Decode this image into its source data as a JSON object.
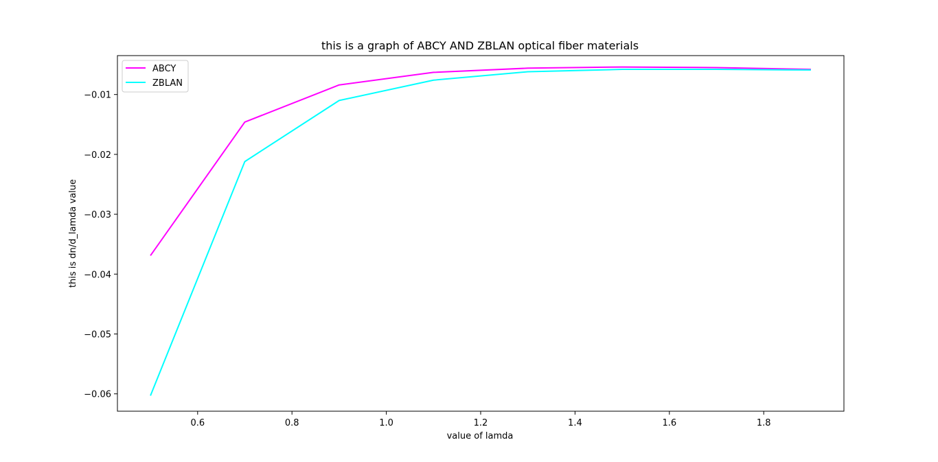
{
  "chart_data": {
    "type": "line",
    "title": "this is a graph of ABCY AND ZBLAN optical fiber materials",
    "xlabel": "value of lamda",
    "ylabel": "this is dn/d_lamda value",
    "x": [
      0.5,
      0.7,
      0.9,
      1.1,
      1.3,
      1.5,
      1.7,
      1.9
    ],
    "series": [
      {
        "name": "ABCY",
        "color": "#ff00ff",
        "values": [
          -0.0369,
          -0.0146,
          -0.0084,
          -0.0063,
          -0.0056,
          -0.0054,
          -0.0055,
          -0.0058
        ]
      },
      {
        "name": "ZBLAN",
        "color": "#00ffff",
        "values": [
          -0.0603,
          -0.0212,
          -0.011,
          -0.0076,
          -0.0062,
          -0.0058,
          -0.0058,
          -0.0059
        ]
      }
    ],
    "xlim": [
      0.43,
      1.97
    ],
    "ylim": [
      -0.0629,
      -0.0035
    ],
    "xticks": [
      0.6,
      0.8,
      1.0,
      1.2,
      1.4,
      1.6,
      1.8
    ],
    "xtick_labels": [
      "0.6",
      "0.8",
      "1.0",
      "1.2",
      "1.4",
      "1.6",
      "1.8"
    ],
    "yticks": [
      -0.06,
      -0.05,
      -0.04,
      -0.03,
      -0.02,
      -0.01
    ],
    "ytick_labels": [
      "−0.06",
      "−0.05",
      "−0.04",
      "−0.03",
      "−0.02",
      "−0.01"
    ],
    "grid": false,
    "legend_position": "upper-left"
  }
}
